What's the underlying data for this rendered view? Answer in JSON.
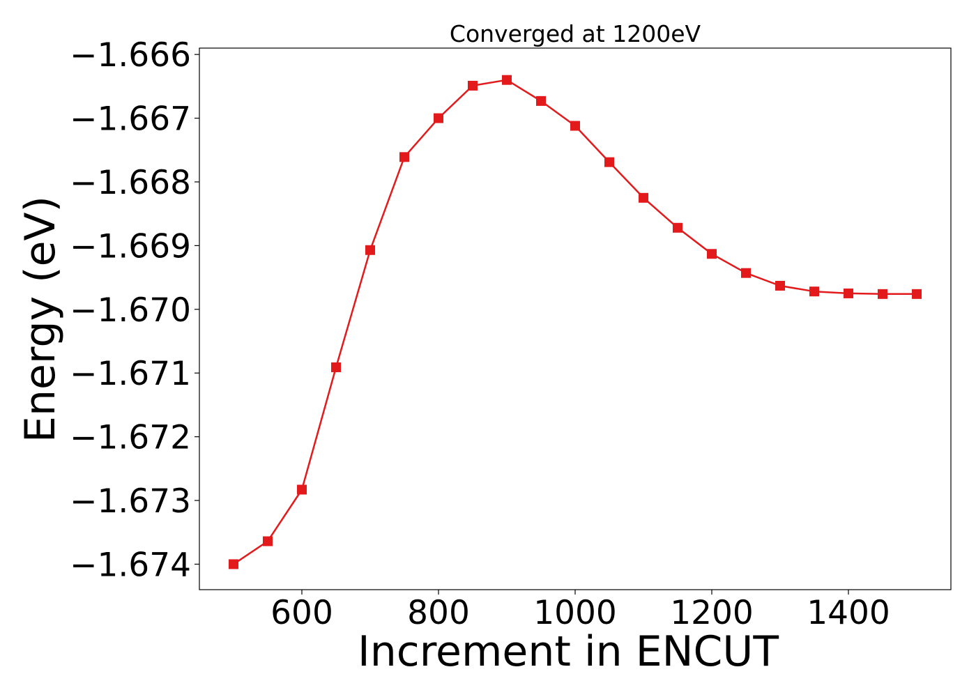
{
  "chart_data": {
    "type": "line",
    "title": "Converged at 1200eV",
    "xlabel": "Increment in ENCUT",
    "ylabel": "Energy (eV)",
    "xlim": [
      450,
      1550
    ],
    "ylim": [
      -1.6744,
      -1.6659
    ],
    "x_ticks": [
      600,
      800,
      1000,
      1200,
      1400
    ],
    "x_tick_labels": [
      "600",
      "800",
      "1000",
      "1200",
      "1400"
    ],
    "y_ticks": [
      -1.666,
      -1.667,
      -1.668,
      -1.669,
      -1.67,
      -1.671,
      -1.672,
      -1.673,
      -1.674
    ],
    "y_tick_labels": [
      "−1.666",
      "−1.667",
      "−1.668",
      "−1.669",
      "−1.670",
      "−1.671",
      "−1.672",
      "−1.673",
      "−1.674"
    ],
    "grid": false,
    "series": [
      {
        "color": "#e31a1c",
        "marker": "square",
        "x": [
          500,
          550,
          600,
          650,
          700,
          750,
          800,
          850,
          900,
          950,
          1000,
          1050,
          1100,
          1150,
          1200,
          1250,
          1300,
          1350,
          1400,
          1450,
          1500
        ],
        "values": [
          -1.674,
          -1.67364,
          -1.67283,
          -1.67091,
          -1.66907,
          -1.66761,
          -1.667,
          -1.66649,
          -1.6664,
          -1.66673,
          -1.66712,
          -1.66769,
          -1.66825,
          -1.66872,
          -1.66913,
          -1.66943,
          -1.66963,
          -1.66972,
          -1.66975,
          -1.66976,
          -1.66976
        ]
      }
    ]
  }
}
